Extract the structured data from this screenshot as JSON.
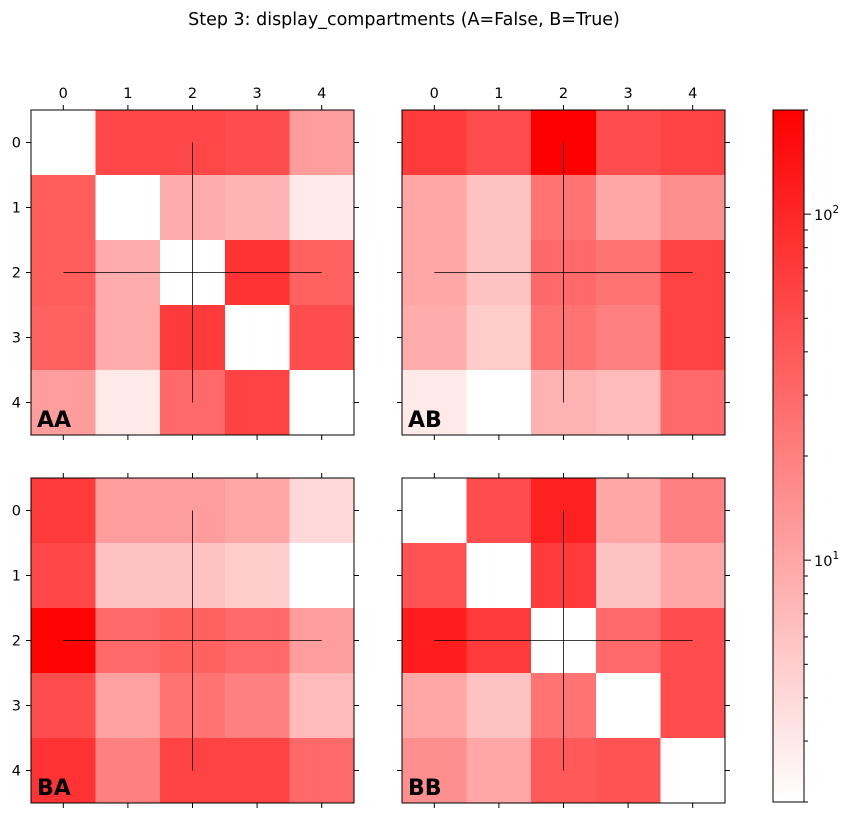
{
  "title": "Step 3: display_compartments (A=False, B=True)",
  "chart_data": {
    "type": "heatmap",
    "scale": "log",
    "colormap": {
      "low": "#ffffff",
      "high": "#ff0000"
    },
    "vmin": 2,
    "vmax": 200,
    "x_ticks": [
      "0",
      "1",
      "2",
      "3",
      "4"
    ],
    "y_ticks": [
      "0",
      "1",
      "2",
      "3",
      "4"
    ],
    "panels": [
      {
        "label": "AA",
        "values": [
          [
            null,
            55,
            55,
            50,
            12
          ],
          [
            38,
            null,
            9,
            8,
            3
          ],
          [
            38,
            9,
            null,
            80,
            35
          ],
          [
            35,
            9,
            70,
            null,
            50
          ],
          [
            12,
            3,
            30,
            60,
            null
          ]
        ],
        "crosshair": {
          "row": 2,
          "col": 2
        }
      },
      {
        "label": "AB",
        "values": [
          [
            70,
            50,
            200,
            50,
            60
          ],
          [
            10,
            6,
            25,
            10,
            15
          ],
          [
            10,
            6,
            30,
            25,
            60
          ],
          [
            9,
            5,
            25,
            20,
            60
          ],
          [
            3,
            2,
            8,
            7,
            30
          ]
        ],
        "crosshair": {
          "row": 2,
          "col": 2
        }
      },
      {
        "label": "BA",
        "values": [
          [
            70,
            12,
            12,
            10,
            4
          ],
          [
            55,
            6,
            6,
            5,
            2
          ],
          [
            190,
            30,
            35,
            30,
            12
          ],
          [
            50,
            11,
            25,
            20,
            7
          ],
          [
            80,
            20,
            60,
            60,
            30
          ]
        ],
        "crosshair": {
          "row": 2,
          "col": 2
        }
      },
      {
        "label": "BB",
        "values": [
          [
            null,
            50,
            110,
            10,
            20
          ],
          [
            45,
            null,
            70,
            6,
            10
          ],
          [
            120,
            70,
            null,
            30,
            50
          ],
          [
            10,
            6,
            25,
            null,
            50
          ],
          [
            15,
            10,
            40,
            45,
            null
          ]
        ],
        "crosshair": {
          "row": 2,
          "col": 2
        }
      }
    ],
    "colorbar": {
      "ticks": [
        "10^1",
        "10^2"
      ]
    }
  }
}
